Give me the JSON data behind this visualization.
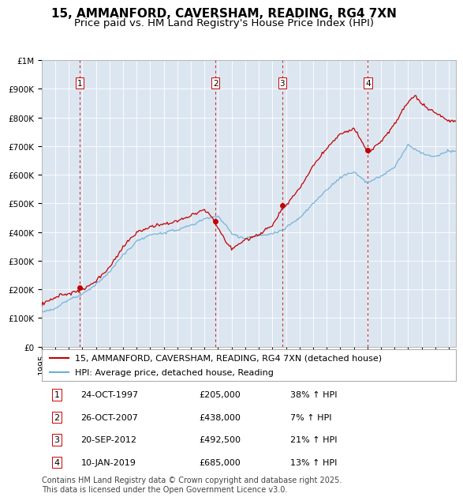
{
  "title": "15, AMMANFORD, CAVERSHAM, READING, RG4 7XN",
  "subtitle": "Price paid vs. HM Land Registry's House Price Index (HPI)",
  "ylim": [
    0,
    1000000
  ],
  "xlim_start": 1995.0,
  "xlim_end": 2025.5,
  "sale_dates": [
    1997.81,
    2007.81,
    2012.72,
    2019.03
  ],
  "sale_prices": [
    205000,
    438000,
    492500,
    685000
  ],
  "sale_labels": [
    "1",
    "2",
    "3",
    "4"
  ],
  "vline_dates": [
    1997.81,
    2007.81,
    2012.72,
    2019.03
  ],
  "hpi_color": "#6baed6",
  "price_color": "#c00000",
  "vline_color": "#cc0000",
  "plot_bg_color": "#dce6f1",
  "legend_items": [
    "15, AMMANFORD, CAVERSHAM, READING, RG4 7XN (detached house)",
    "HPI: Average price, detached house, Reading"
  ],
  "table_rows": [
    [
      "1",
      "24-OCT-1997",
      "£205,000",
      "38% ↑ HPI"
    ],
    [
      "2",
      "26-OCT-2007",
      "£438,000",
      "7% ↑ HPI"
    ],
    [
      "3",
      "20-SEP-2012",
      "£492,500",
      "21% ↑ HPI"
    ],
    [
      "4",
      "10-JAN-2019",
      "£685,000",
      "13% ↑ HPI"
    ]
  ],
  "footnote": "Contains HM Land Registry data © Crown copyright and database right 2025.\nThis data is licensed under the Open Government Licence v3.0.",
  "title_fontsize": 11,
  "subtitle_fontsize": 9.5,
  "tick_fontsize": 7.5,
  "legend_fontsize": 8,
  "table_fontsize": 8,
  "footnote_fontsize": 7
}
